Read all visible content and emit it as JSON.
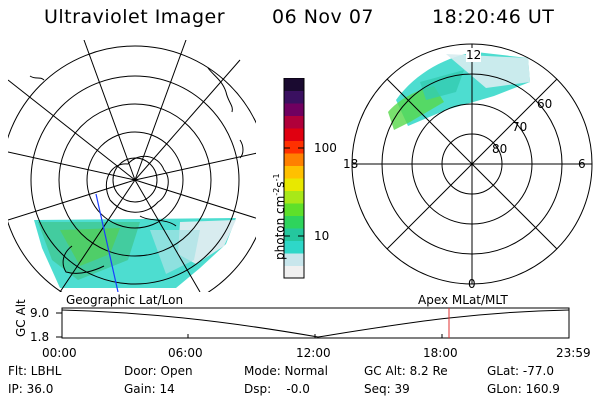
{
  "header": {
    "instrument": "Ultraviolet Imager",
    "date": "06 Nov 07",
    "time": "18:20:46 UT"
  },
  "colorbar": {
    "label": "photon cm",
    "label_sup1": "-2",
    "label_mid": "s",
    "label_sup2": "-1",
    "ticks": [
      {
        "label": "100",
        "value": 100
      },
      {
        "label": "10",
        "value": 10
      }
    ],
    "scale": "log",
    "colors": [
      "#f0f0f0",
      "#c8e6ec",
      "#2ed7c8",
      "#24c79e",
      "#2ed45c",
      "#5ee02a",
      "#a8e818",
      "#e8e800",
      "#ffc000",
      "#ff8000",
      "#ff3000",
      "#e00010",
      "#b0003a",
      "#700060",
      "#3a1060",
      "#1a0a30"
    ]
  },
  "geo_map": {
    "label": "Geographic Lat/Lon"
  },
  "apex_map": {
    "label": "Apex MLat/MLT",
    "mlt_labels": {
      "top": "12",
      "left": "18",
      "right": "6",
      "bottom": "0"
    },
    "lat_labels": [
      "60",
      "70",
      "80"
    ]
  },
  "altitude_plot": {
    "ylabel": "GC Alt",
    "yticks": [
      "9.0",
      "1.8"
    ],
    "xticks": [
      "00:00",
      "06:00",
      "12:00",
      "18:00",
      "23:59"
    ],
    "current_time_marker": "18:20"
  },
  "info": {
    "filter": "Flt: LBHL",
    "ip": "IP: 36.0",
    "door": "Door: Open",
    "gain": "Gain: 14",
    "mode": "Mode: Normal",
    "dsp": "Dsp:    -0.0",
    "gc_alt": "GC Alt: 8.2 Re",
    "seq": "Seq: 39",
    "glat": "GLat: -77.0",
    "glon": "GLon: 160.9"
  }
}
